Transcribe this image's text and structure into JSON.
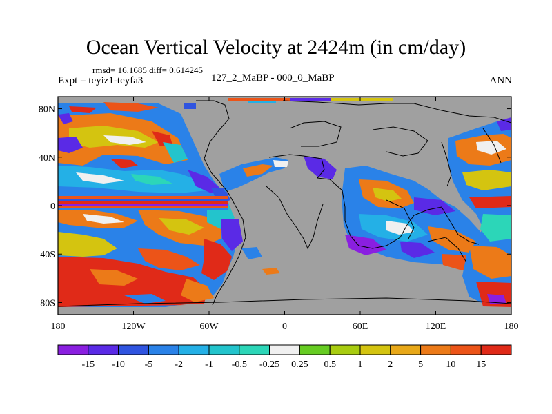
{
  "title": "Ocean Vertical Velocity at 2424m (in cm/day)",
  "stats": "rmsd= 16.1685 diff= 0.614245",
  "experiment": "Expt = teyiz1-teyfa3",
  "case_label": "127_2_MaBP - 000_0_MaBP",
  "season": "ANN",
  "lat_ticks": [
    "80N",
    "40N",
    "0",
    "40S",
    "80S"
  ],
  "lon_ticks": [
    "180",
    "120W",
    "60W",
    "0",
    "60E",
    "120E",
    "180"
  ],
  "colorbar": {
    "colors": [
      "#8a1fe0",
      "#5a2ae6",
      "#2f54e0",
      "#2a82e8",
      "#24b0e6",
      "#23c4cc",
      "#2cd6b8",
      "#f0f0f0",
      "#66cc22",
      "#a8cc10",
      "#d4c410",
      "#e8a818",
      "#ec7a18",
      "#ec5418",
      "#e02a18"
    ],
    "labels": [
      "-15",
      "-10",
      "-5",
      "-2",
      "-1",
      "-0.5",
      "-0.25",
      "0.25",
      "0.5",
      "1",
      "2",
      "5",
      "10",
      "15"
    ]
  },
  "map": {
    "land_color": "#a0a0a0",
    "lat_range": [
      -90,
      90
    ],
    "lon_range": [
      -180,
      180
    ]
  }
}
